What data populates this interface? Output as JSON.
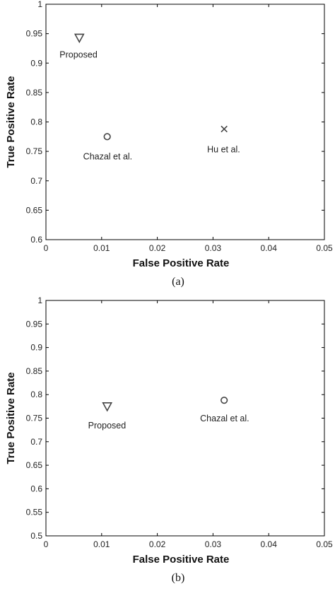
{
  "chart_data": [
    {
      "type": "scatter",
      "caption": "(a)",
      "xlabel": "False Positive Rate",
      "ylabel": "True Positive Rate",
      "xlim": [
        0,
        0.05
      ],
      "ylim": [
        0.6,
        1
      ],
      "xticks": [
        "0",
        "0.01",
        "0.02",
        "0.03",
        "0.04",
        "0.05"
      ],
      "yticks": [
        "0.6",
        "0.65",
        "0.7",
        "0.75",
        "0.8",
        "0.85",
        "0.9",
        "0.95",
        "1"
      ],
      "grid": false,
      "points": [
        {
          "label": "Proposed",
          "marker": "triangle-down",
          "x": 0.006,
          "y": 0.943
        },
        {
          "label": "Chazal et al.",
          "marker": "circle",
          "x": 0.011,
          "y": 0.775
        },
        {
          "label": "Hu et al.",
          "marker": "x",
          "x": 0.032,
          "y": 0.788
        }
      ]
    },
    {
      "type": "scatter",
      "caption": "(b)",
      "xlabel": "False Positive Rate",
      "ylabel": "True Positive Rate",
      "xlim": [
        0,
        0.05
      ],
      "ylim": [
        0.5,
        1
      ],
      "xticks": [
        "0",
        "0.01",
        "0.02",
        "0.03",
        "0.04",
        "0.05"
      ],
      "yticks": [
        "0.5",
        "0.55",
        "0.6",
        "0.65",
        "0.7",
        "0.75",
        "0.8",
        "0.85",
        "0.9",
        "0.95",
        "1"
      ],
      "grid": false,
      "points": [
        {
          "label": "Proposed",
          "marker": "triangle-down",
          "x": 0.011,
          "y": 0.775
        },
        {
          "label": "Chazal et al.",
          "marker": "circle",
          "x": 0.032,
          "y": 0.788
        }
      ]
    }
  ]
}
